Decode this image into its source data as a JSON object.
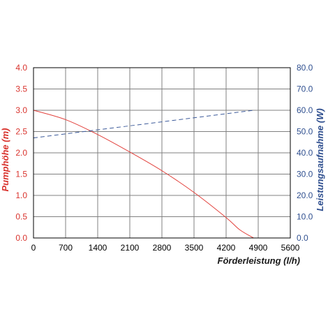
{
  "chart_data": {
    "type": "line",
    "title": "",
    "xlabel": "Förderleistung (l/h)",
    "ylabel_left": "Pumphöhe (m)",
    "ylabel_right": "Leistungsaufnahme (W)",
    "xlim": [
      0,
      5600
    ],
    "ylim_left": [
      0,
      4
    ],
    "ylim_right": [
      0,
      80
    ],
    "x_ticks": [
      "0",
      "700",
      "1400",
      "2100",
      "2800",
      "3500",
      "4200",
      "4900",
      "5600"
    ],
    "y_left_ticks": [
      "0.0",
      "0.5",
      "1.0",
      "1.5",
      "2.0",
      "2.5",
      "3.0",
      "3.5",
      "4.0"
    ],
    "y_right_ticks": [
      "0.0",
      "10.0",
      "20.0",
      "30.0",
      "40.0",
      "50.0",
      "60.0",
      "70.0",
      "80.0"
    ],
    "grid": true,
    "series": [
      {
        "axis": "left",
        "color": "#e2403b",
        "style": "solid",
        "x": [
          0,
          700,
          1400,
          2100,
          2800,
          3500,
          4200,
          4500,
          4800
        ],
        "y": [
          3.0,
          2.78,
          2.43,
          2.02,
          1.58,
          1.07,
          0.48,
          0.19,
          0.0
        ]
      },
      {
        "axis": "right",
        "color": "#3c5a9a",
        "style": "dashed",
        "x": [
          0,
          4800
        ],
        "y": [
          47,
          60
        ]
      }
    ],
    "colors": {
      "left_axis": "#d9342e",
      "right_axis": "#2f4f8f",
      "x_axis_title": "#1a1a1a",
      "grid": "#808080",
      "frame": "#000000"
    }
  }
}
